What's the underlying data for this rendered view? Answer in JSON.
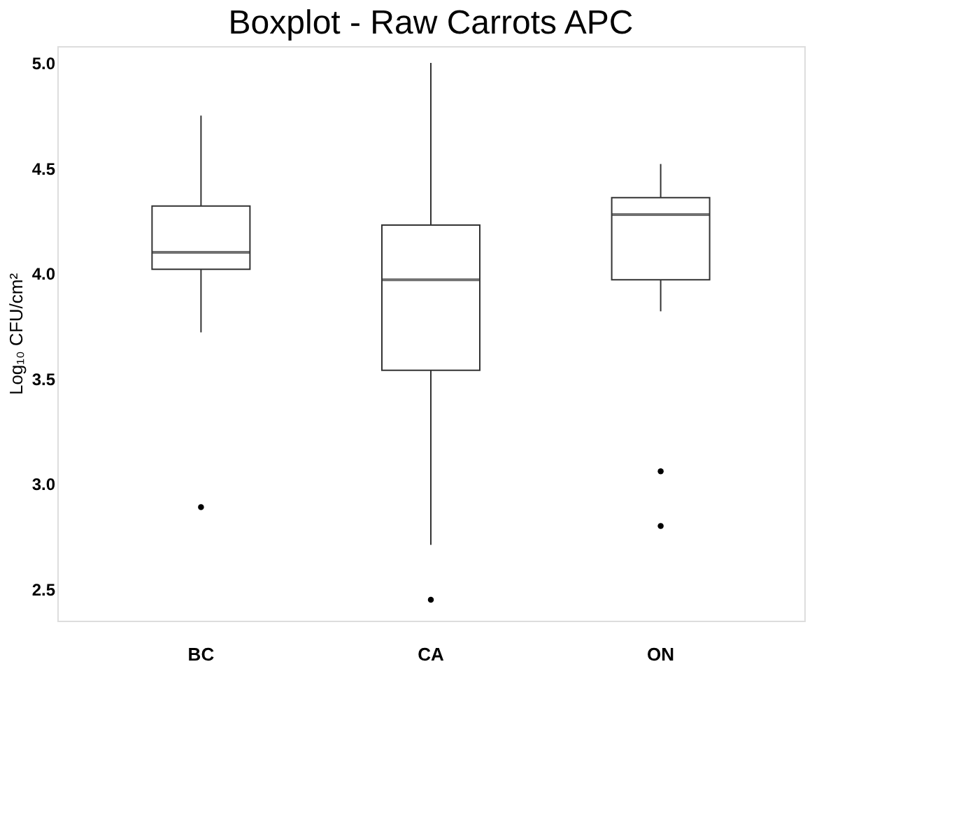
{
  "chart_data": {
    "type": "box",
    "title": "Boxplot - Raw Carrots APC",
    "ylabel": "Log₁₀ CFU/cm²",
    "categories": [
      "BC",
      "CA",
      "ON"
    ],
    "boxes": [
      {
        "low": 3.72,
        "q1": 4.02,
        "median": 4.1,
        "q3": 4.32,
        "high": 4.75,
        "outliers": [
          2.89
        ]
      },
      {
        "low": 2.71,
        "q1": 3.54,
        "median": 3.97,
        "q3": 4.23,
        "high": 5.0,
        "outliers": [
          2.45
        ]
      },
      {
        "low": 3.82,
        "q1": 3.97,
        "median": 4.28,
        "q3": 4.36,
        "high": 4.52,
        "outliers": [
          3.06,
          2.8
        ]
      }
    ],
    "color": "#333333",
    "ylim": [
      2.35,
      5.08
    ],
    "yticks": [
      {
        "value": 2.5,
        "label": "2.5"
      },
      {
        "value": 3,
        "label": "3.0"
      },
      {
        "value": 3.5,
        "label": "3.5"
      },
      {
        "value": 4,
        "label": "4.0"
      },
      {
        "value": 4.5,
        "label": "4.5"
      },
      {
        "value": 5,
        "label": "5.0"
      }
    ],
    "grid": false
  }
}
